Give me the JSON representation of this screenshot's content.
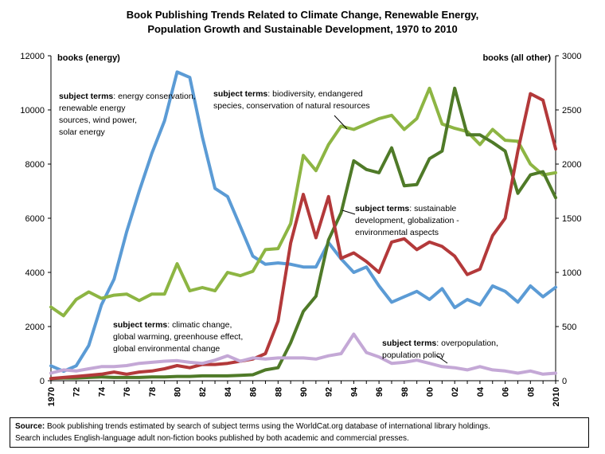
{
  "title_line1": "Book Publishing Trends Related to Climate Change, Renewable Energy,",
  "title_line2": "Population Growth and Sustainable Development, 1970 to 2010",
  "footer": {
    "source_label": "Source:",
    "source_text": " Book publishing trends estimated by search of subject terms using the WorldCat.org database of international library holdings.",
    "line2": "Search includes English-language adult non-fiction books published by both academic and commercial presses."
  },
  "chart_data": {
    "type": "line",
    "title": "Book Publishing Trends Related to Climate Change, Renewable Energy, Population Growth and Sustainable Development, 1970 to 2010",
    "y_left_label": "books (energy)",
    "y_right_label": "books (all other)",
    "y_left_lim": [
      0,
      12000
    ],
    "y_left_ticks": [
      "0",
      "2000",
      "4000",
      "6000",
      "8000",
      "10000",
      "12000"
    ],
    "y_right_lim": [
      0,
      3000
    ],
    "y_right_ticks": [
      "0",
      "500",
      "1000",
      "1500",
      "2000",
      "2500",
      "3000"
    ],
    "x_lim": [
      1970,
      2010
    ],
    "x_tick_labels": [
      "1970",
      "72",
      "74",
      "76",
      "78",
      "80",
      "82",
      "84",
      "86",
      "88",
      "90",
      "92",
      "94",
      "96",
      "98",
      "00",
      "02",
      "04",
      "06",
      "08",
      "2010"
    ],
    "grid": false,
    "colors": {
      "energy": "#5b9bd5",
      "biodiversity": "#8db543",
      "sustainable": "#4f7a28",
      "climate": "#b3393a",
      "population": "#c4a8d6"
    },
    "annotations": [
      {
        "series": "energy",
        "bold": "subject terms",
        "lines": [
          "subject terms: energy conservation,",
          "renewable energy",
          "sources, wind power,",
          "solar energy"
        ]
      },
      {
        "series": "biodiversity",
        "bold": "subject terms",
        "lines": [
          "subject terms: biodiversity, endangered",
          "species, conservation of natural resources"
        ]
      },
      {
        "series": "sustainable",
        "bold": "subject terms",
        "lines": [
          "subject terms: sustainable",
          "development, globalization -",
          "environmental aspects"
        ]
      },
      {
        "series": "climate",
        "bold": "subject terms",
        "lines": [
          "subject terms: climatic change,",
          "global warming, greenhouse effect,",
          "global environmental change"
        ]
      },
      {
        "series": "population",
        "bold": "subject terms",
        "lines": [
          "subject terms: overpopulation,",
          "population policy"
        ]
      }
    ],
    "series": [
      {
        "key": "energy",
        "axis": "left",
        "x": [
          1970,
          1971,
          1972,
          1973,
          1974,
          1975,
          1976,
          1977,
          1978,
          1979,
          1980,
          1981,
          1982,
          1983,
          1984,
          1985,
          1986,
          1987,
          1988,
          1989,
          1990,
          1991,
          1992,
          1993,
          1994,
          1995,
          1996,
          1997,
          1998,
          1999,
          2000,
          2001,
          2002,
          2003,
          2004,
          2005,
          2006,
          2007,
          2008,
          2009,
          2010
        ],
        "values": [
          550,
          350,
          550,
          1300,
          2800,
          3750,
          5500,
          7000,
          8400,
          9600,
          11400,
          11200,
          9000,
          7100,
          6800,
          5700,
          4600,
          4300,
          4350,
          4300,
          4200,
          4200,
          5100,
          4500,
          4000,
          4200,
          3500,
          2900,
          3100,
          3300,
          3000,
          3400,
          2700,
          3000,
          2800,
          3500,
          3300,
          2900,
          3500,
          3100,
          3450
        ]
      },
      {
        "key": "biodiversity",
        "axis": "right",
        "x": [
          1970,
          1971,
          1972,
          1973,
          1974,
          1975,
          1976,
          1977,
          1978,
          1979,
          1980,
          1981,
          1982,
          1983,
          1984,
          1985,
          1986,
          1987,
          1988,
          1989,
          1990,
          1991,
          1992,
          1993,
          1994,
          1995,
          1996,
          1997,
          1998,
          1999,
          2000,
          2001,
          2002,
          2003,
          2004,
          2005,
          2006,
          2007,
          2008,
          2009,
          2010
        ],
        "values": [
          680,
          600,
          750,
          820,
          760,
          790,
          800,
          740,
          800,
          800,
          1080,
          830,
          860,
          830,
          1000,
          970,
          1010,
          1210,
          1220,
          1450,
          2080,
          1940,
          2180,
          2350,
          2320,
          2370,
          2420,
          2450,
          2320,
          2420,
          2700,
          2370,
          2330,
          2300,
          2180,
          2320,
          2220,
          2210,
          2000,
          1900,
          1920
        ]
      },
      {
        "key": "sustainable",
        "axis": "right",
        "x": [
          1970,
          1971,
          1972,
          1973,
          1974,
          1975,
          1976,
          1977,
          1978,
          1979,
          1980,
          1981,
          1982,
          1983,
          1984,
          1985,
          1986,
          1987,
          1988,
          1989,
          1990,
          1991,
          1992,
          1993,
          1994,
          1995,
          1996,
          1997,
          1998,
          1999,
          2000,
          2001,
          2002,
          2003,
          2004,
          2005,
          2006,
          2007,
          2008,
          2009,
          2010
        ],
        "values": [
          20,
          25,
          25,
          30,
          35,
          30,
          30,
          30,
          35,
          35,
          40,
          40,
          45,
          45,
          45,
          50,
          55,
          100,
          120,
          350,
          640,
          780,
          1300,
          1550,
          2030,
          1950,
          1920,
          2150,
          1800,
          1810,
          2050,
          2120,
          2700,
          2270,
          2270,
          2200,
          2120,
          1730,
          1900,
          1930,
          1690
        ]
      },
      {
        "key": "climate",
        "axis": "right",
        "x": [
          1970,
          1971,
          1972,
          1973,
          1974,
          1975,
          1976,
          1977,
          1978,
          1979,
          1980,
          1981,
          1982,
          1983,
          1984,
          1985,
          1986,
          1987,
          1988,
          1989,
          1990,
          1991,
          1992,
          1993,
          1994,
          1995,
          1996,
          1997,
          1998,
          1999,
          2000,
          2001,
          2002,
          2003,
          2004,
          2005,
          2006,
          2007,
          2008,
          2009,
          2010
        ],
        "values": [
          20,
          30,
          40,
          50,
          60,
          80,
          60,
          80,
          90,
          110,
          140,
          120,
          150,
          150,
          160,
          180,
          200,
          250,
          550,
          1270,
          1720,
          1320,
          1700,
          1130,
          1180,
          1100,
          1000,
          1280,
          1310,
          1210,
          1280,
          1240,
          1150,
          980,
          1030,
          1340,
          1500,
          2120,
          2650,
          2590,
          2140
        ]
      },
      {
        "key": "population",
        "axis": "right",
        "x": [
          1970,
          1971,
          1972,
          1973,
          1974,
          1975,
          1976,
          1977,
          1978,
          1979,
          1980,
          1981,
          1982,
          1983,
          1984,
          1985,
          1986,
          1987,
          1988,
          1989,
          1990,
          1991,
          1992,
          1993,
          1994,
          1995,
          1996,
          1997,
          1998,
          1999,
          2000,
          2001,
          2002,
          2003,
          2004,
          2005,
          2006,
          2007,
          2008,
          2009,
          2010
        ],
        "values": [
          70,
          100,
          90,
          110,
          130,
          130,
          140,
          160,
          170,
          180,
          185,
          170,
          160,
          190,
          230,
          180,
          210,
          200,
          210,
          210,
          210,
          200,
          230,
          250,
          430,
          260,
          220,
          160,
          170,
          190,
          160,
          130,
          120,
          100,
          130,
          100,
          90,
          70,
          90,
          60,
          70
        ]
      }
    ]
  }
}
